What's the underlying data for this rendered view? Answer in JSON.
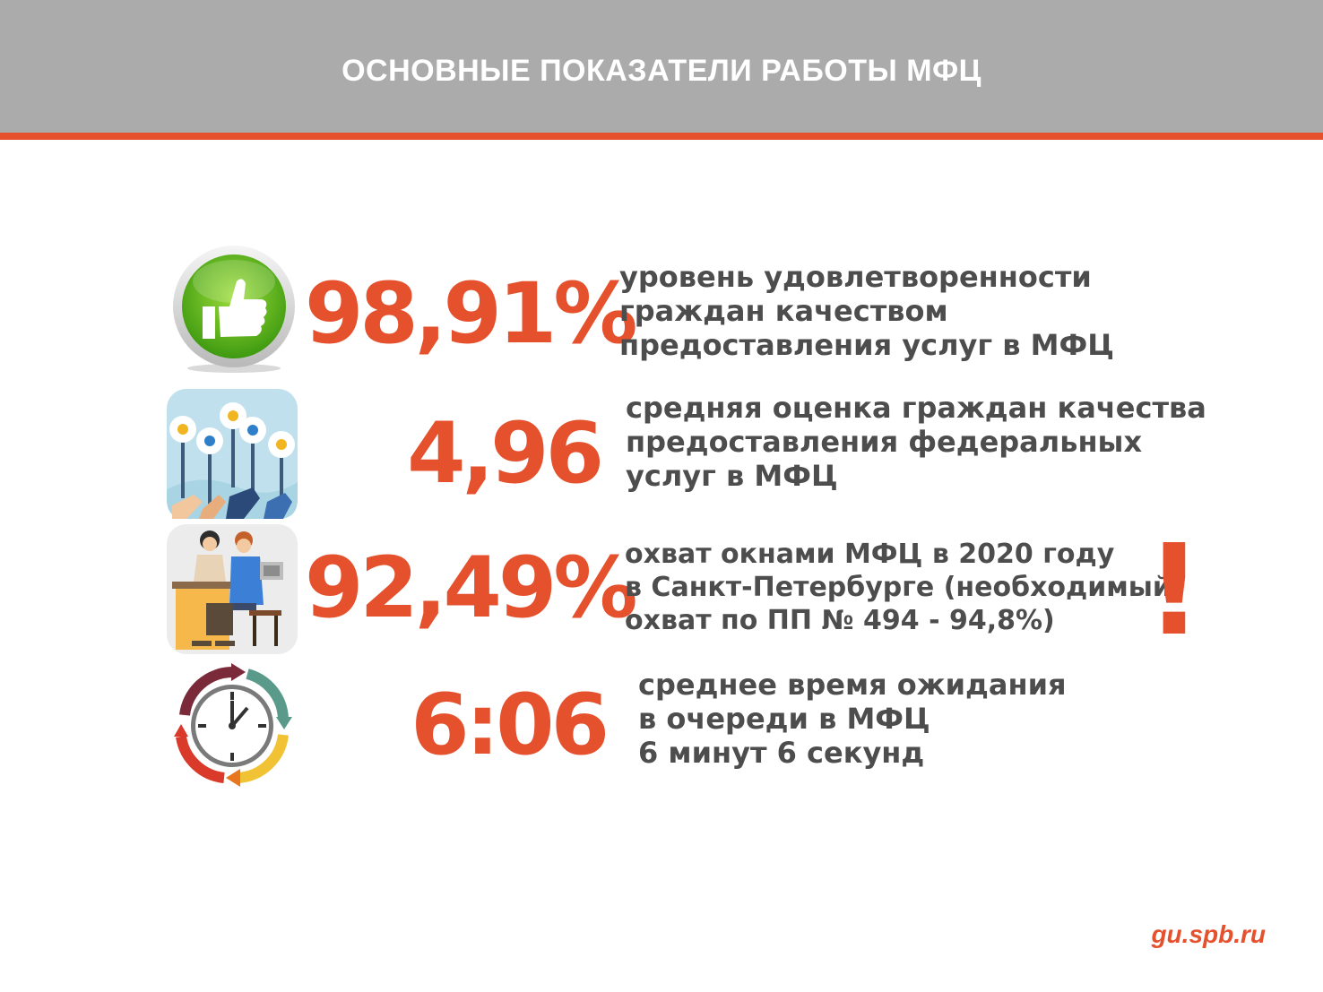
{
  "header": {
    "title": "ОСНОВНЫЕ ПОКАЗАТЕЛИ РАБОТЫ МФЦ"
  },
  "metrics": [
    {
      "value": "98,91%",
      "lines": [
        "уровень удовлетворенности",
        "граждан качеством",
        "предоставления услуг в МФЦ"
      ],
      "icon": "thumbs-up-icon"
    },
    {
      "value": "4,96",
      "lines": [
        "средняя оценка граждан качества",
        "предоставления федеральных",
        "услуг в МФЦ"
      ],
      "icon": "voting-hands-icon"
    },
    {
      "value": "92,49%",
      "lines": [
        "охват окнами МФЦ в 2020 году",
        "в Санкт-Петербурге (необходимый",
        "охват по ПП № 494 - 94,8%)"
      ],
      "icon": "service-desk-icon"
    },
    {
      "value": "6:06",
      "lines": [
        "среднее время ожидания",
        "в очереди в МФЦ",
        "6 минут 6 секунд"
      ],
      "icon": "clock-icon"
    }
  ],
  "alert": {
    "symbol": "!",
    "icon": "exclamation-icon"
  },
  "footer": {
    "site": "gu.spb.ru"
  },
  "colors": {
    "accent": "#e5502d",
    "header_bg": "#ababab",
    "text": "#4d4d4d"
  }
}
